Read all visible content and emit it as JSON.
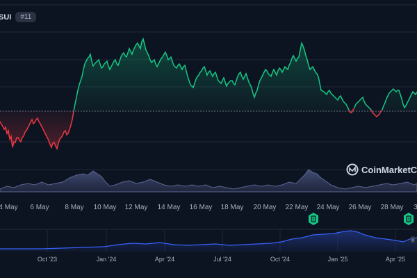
{
  "header": {
    "symbol": "SUI",
    "rank": "#11"
  },
  "watermark": {
    "brand": "CoinMarketCap",
    "icon": "coinmarketcap-logo"
  },
  "main_chart": {
    "x_ticks": [
      "4 May",
      "6 May",
      "8 May",
      "10 May",
      "12 May",
      "14 May",
      "16 May",
      "18 May",
      "20 May",
      "22 May",
      "24 May",
      "26 May",
      "28 May",
      "3"
    ],
    "news_markers": [
      "news-document-icon",
      "news-document-icon"
    ]
  },
  "navigator": {
    "x_ticks": [
      "Oct '23",
      "Jan '24",
      "Apr '24",
      "Jul '24",
      "Oct '24",
      "Jan '25",
      "Apr '25"
    ]
  },
  "colors": {
    "background": "#0d1421",
    "up": "#16c784",
    "down": "#ea3943",
    "volume": "#3a4468",
    "navigator_line": "#3861fb",
    "text": "#a6b0c3"
  }
}
